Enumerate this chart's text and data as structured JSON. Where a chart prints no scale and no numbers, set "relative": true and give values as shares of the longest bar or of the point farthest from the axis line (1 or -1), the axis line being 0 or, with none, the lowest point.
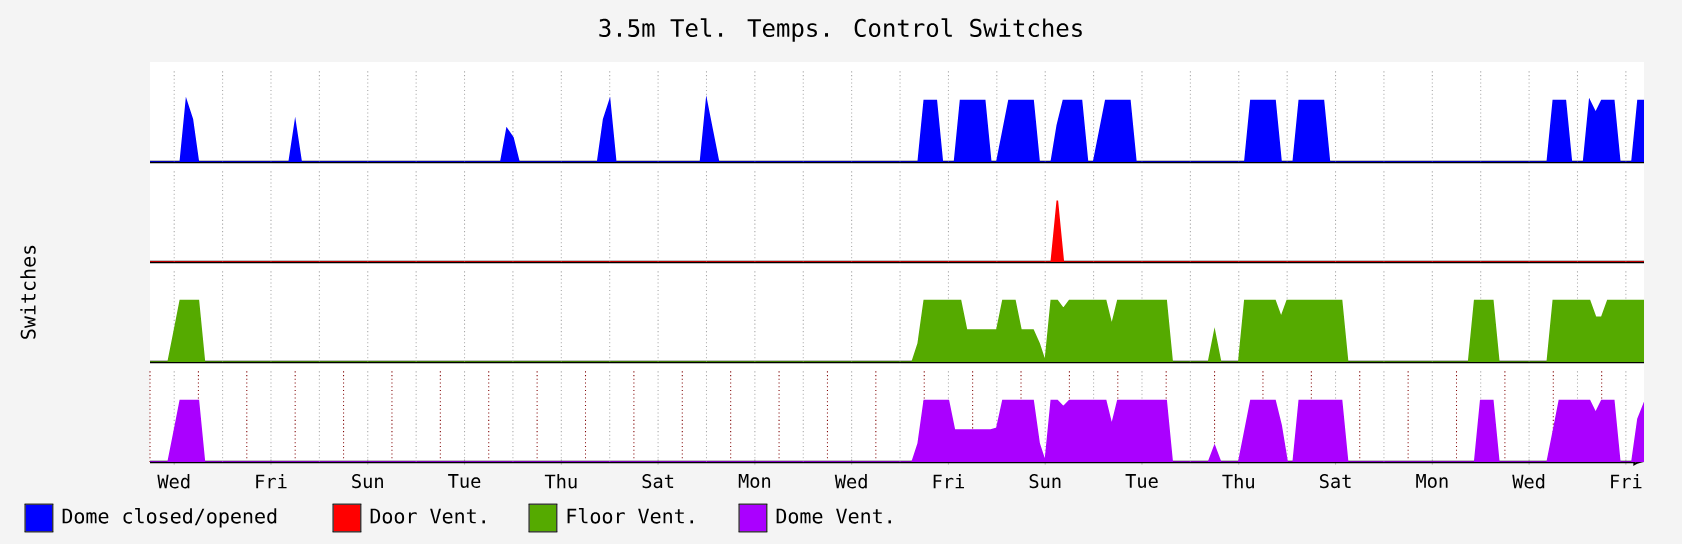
{
  "chart_data": [
    {
      "type": "area",
      "title": "3.5m Tel. Temps. Control Switches",
      "relative": true,
      "grid": "x",
      "tick_labels": false,
      "legend": "bottom",
      "categories": [
        null,
        null,
        null,
        null,
        null,
        null,
        null,
        null,
        null,
        null,
        null,
        null,
        null,
        null,
        null,
        null,
        null,
        null,
        null,
        null,
        null,
        null,
        null,
        null,
        null,
        null,
        null,
        null,
        null,
        null,
        null,
        null,
        null,
        null,
        null,
        null,
        null,
        null,
        null,
        null,
        null,
        null,
        null,
        null,
        null,
        null,
        null,
        null,
        null,
        null,
        null,
        null,
        null,
        null,
        null,
        null,
        null,
        null,
        null,
        null,
        null,
        null,
        null,
        null,
        null,
        null,
        null,
        null,
        null,
        null,
        null,
        null,
        null,
        null,
        null,
        null,
        null,
        null,
        null,
        null,
        null,
        null,
        null,
        null,
        null,
        null,
        null,
        null,
        null,
        null,
        null,
        null,
        null,
        null,
        null,
        null,
        null,
        null,
        null,
        null,
        null,
        null,
        null,
        null,
        null,
        null,
        null,
        null,
        null,
        null,
        null,
        null,
        null,
        null,
        null,
        null,
        null,
        null,
        null,
        null,
        null,
        null,
        null,
        null,
        null,
        null,
        null,
        null,
        null,
        null,
        null,
        null,
        null,
        null,
        null,
        null,
        null,
        null,
        null,
        null,
        null,
        null,
        null,
        null,
        null,
        null,
        null,
        null,
        null,
        null,
        null,
        null,
        null,
        null,
        null,
        null,
        null,
        null,
        null,
        null,
        null,
        null,
        null,
        null,
        null,
        null,
        null,
        null,
        null,
        null,
        null,
        null,
        null,
        null,
        null,
        null,
        null,
        null,
        null,
        null,
        null,
        null,
        null,
        null,
        null,
        null,
        null,
        null,
        null,
        null,
        null,
        null,
        null,
        null,
        null,
        null,
        null,
        null,
        null,
        null,
        null,
        null,
        null,
        null,
        null,
        null,
        null,
        null,
        null,
        null,
        null,
        null,
        null,
        null,
        null,
        null,
        null,
        null,
        null,
        null,
        null,
        null,
        null,
        null,
        null,
        null,
        null,
        null,
        null,
        null,
        null,
        null,
        null,
        null,
        null,
        null,
        null,
        null,
        null,
        null,
        null,
        null,
        null,
        null,
        null,
        null,
        null,
        null
      ],
      "series": [
        {
          "name": "Dome closed/opened",
          "color": "#0000ff",
          "values": [
            0,
            0,
            0,
            0,
            0,
            0,
            1,
            0.7,
            0,
            0,
            0,
            0,
            0,
            0,
            0,
            0,
            0,
            0,
            0,
            0,
            0,
            0,
            0,
            0,
            0.65,
            0,
            0,
            0,
            0,
            0,
            0,
            0,
            0,
            0,
            0,
            0,
            0,
            0,
            0,
            0,
            0,
            0,
            0,
            0,
            0,
            0,
            0,
            0,
            0,
            0,
            0,
            0,
            0,
            0,
            0,
            0,
            0,
            0,
            0,
            0.54,
            0.4,
            0,
            0,
            0,
            0,
            0,
            0,
            0,
            0,
            0,
            0,
            0,
            0,
            0,
            0,
            0.7,
            1,
            0,
            0,
            0,
            0,
            0,
            0,
            0,
            0,
            0,
            0,
            0,
            0,
            0,
            0,
            0,
            1,
            0.5,
            0,
            0,
            0,
            0,
            0,
            0,
            0,
            0,
            0,
            0,
            0,
            0,
            0,
            0,
            0,
            0,
            0,
            0,
            0,
            0,
            0,
            0,
            0,
            0,
            0,
            0,
            0,
            0,
            0,
            0,
            0,
            0,
            0,
            0,
            1,
            1,
            1,
            0,
            0,
            0,
            1,
            1,
            1,
            1,
            1,
            0,
            0,
            0.5,
            1,
            1,
            1,
            1,
            1,
            0,
            0,
            0,
            0.6,
            1,
            1,
            1,
            1,
            0,
            0,
            0.5,
            1,
            1,
            1,
            1,
            1,
            0,
            0,
            0,
            0,
            0,
            0,
            0,
            0,
            0,
            0,
            0,
            0,
            0,
            0,
            0,
            0,
            0,
            0,
            0,
            1,
            1,
            1,
            1,
            1,
            0,
            0,
            0,
            1,
            1,
            1,
            1,
            1,
            0,
            0,
            0,
            0,
            0,
            0,
            0,
            0,
            0,
            0,
            0,
            0,
            0,
            0,
            0,
            0,
            0,
            0,
            0,
            0,
            0,
            0,
            0,
            0,
            0,
            0,
            0,
            0,
            0,
            0,
            0,
            0,
            0,
            0,
            0,
            0,
            0,
            1,
            1,
            1,
            0,
            0,
            0,
            1,
            0.8,
            1,
            1,
            1,
            0,
            0,
            0,
            1,
            1
          ]
        }
      ]
    },
    {
      "type": "area",
      "relative": true,
      "grid": "x",
      "tick_labels": false,
      "legend": "bottom",
      "ylabel": "Switches",
      "categories": [
        null,
        null,
        null,
        null,
        null,
        null,
        null,
        null,
        null,
        null,
        null,
        null,
        null,
        null,
        null,
        null,
        null,
        null,
        null,
        null,
        null,
        null,
        null,
        null,
        null,
        null,
        null,
        null,
        null,
        null,
        null,
        null,
        null,
        null,
        null,
        null,
        null,
        null,
        null,
        null,
        null,
        null,
        null,
        null,
        null,
        null,
        null,
        null,
        null,
        null,
        null,
        null,
        null,
        null,
        null,
        null,
        null,
        null,
        null,
        null,
        null,
        null,
        null,
        null,
        null,
        null,
        null,
        null,
        null,
        null,
        null,
        null,
        null,
        null,
        null,
        null,
        null,
        null,
        null,
        null,
        null,
        null,
        null,
        null,
        null,
        null,
        null,
        null,
        null,
        null,
        null,
        null,
        null,
        null,
        null,
        null,
        null,
        null,
        null,
        null,
        null,
        null,
        null,
        null,
        null,
        null,
        null,
        null,
        null,
        null,
        null,
        null,
        null,
        null,
        null,
        null,
        null,
        null,
        null,
        null,
        null,
        null,
        null,
        null,
        null,
        null,
        null,
        null,
        null,
        null,
        null,
        null,
        null,
        null,
        null,
        null,
        null,
        null,
        null,
        null,
        null,
        null,
        null,
        null,
        null,
        null,
        null,
        null,
        null,
        null,
        null,
        null,
        null,
        null,
        null,
        null,
        null,
        null,
        null,
        null,
        null,
        null,
        null,
        null,
        null,
        null,
        null,
        null,
        null,
        null,
        null,
        null,
        null,
        null,
        null,
        null,
        null,
        null,
        null,
        null,
        null,
        null,
        null,
        null,
        null,
        null,
        null,
        null,
        null,
        null,
        null,
        null,
        null,
        null,
        null,
        null,
        null,
        null,
        null,
        null,
        null,
        null,
        null,
        null,
        null,
        null,
        null,
        null,
        null,
        null,
        null,
        null,
        null,
        null,
        null,
        null,
        null,
        null,
        null,
        null,
        null,
        null,
        null,
        null,
        null,
        null,
        null,
        null,
        null,
        null,
        null,
        null,
        null,
        null,
        null,
        null,
        null,
        null,
        null,
        null,
        null,
        null,
        null,
        null,
        null,
        null,
        null,
        null
      ],
      "series": [
        {
          "name": "Door Vent.",
          "color": "#ff0000",
          "values": [
            0,
            0,
            0,
            0,
            0,
            0,
            0,
            0,
            0,
            0,
            0,
            0,
            0,
            0,
            0,
            0,
            0,
            0,
            0,
            0,
            0,
            0,
            0,
            0,
            0,
            0,
            0,
            0,
            0,
            0,
            0,
            0,
            0,
            0,
            0,
            0,
            0,
            0,
            0,
            0,
            0,
            0,
            0,
            0,
            0,
            0,
            0,
            0,
            0,
            0,
            0,
            0,
            0,
            0,
            0,
            0,
            0,
            0,
            0,
            0,
            0,
            0,
            0,
            0,
            0,
            0,
            0,
            0,
            0,
            0,
            0,
            0,
            0,
            0,
            0,
            0,
            0,
            0,
            0,
            0,
            0,
            0,
            0,
            0,
            0,
            0,
            0,
            0,
            0,
            0,
            0,
            0,
            0,
            0,
            0,
            0,
            0,
            0,
            0,
            0,
            0,
            0,
            0,
            0,
            0,
            0,
            0,
            0,
            0,
            0,
            0,
            0,
            0,
            0,
            0,
            0,
            0,
            0,
            0,
            0,
            0,
            0,
            0,
            0,
            0,
            0,
            0,
            0,
            0,
            0,
            0,
            0,
            0,
            0,
            0,
            0,
            0,
            0,
            0,
            0,
            0,
            0,
            0,
            0,
            0,
            0,
            0,
            0,
            0,
            0,
            1,
            0,
            0,
            0,
            0,
            0,
            0,
            0,
            0,
            0,
            0,
            0,
            0,
            0,
            0,
            0,
            0,
            0,
            0,
            0,
            0,
            0,
            0,
            0,
            0,
            0,
            0,
            0,
            0,
            0,
            0,
            0,
            0,
            0,
            0,
            0,
            0,
            0,
            0,
            0,
            0,
            0,
            0,
            0,
            0,
            0,
            0,
            0,
            0,
            0,
            0,
            0,
            0,
            0,
            0,
            0,
            0,
            0,
            0,
            0,
            0,
            0,
            0,
            0,
            0,
            0,
            0,
            0,
            0,
            0,
            0,
            0,
            0,
            0,
            0,
            0,
            0,
            0,
            0,
            0,
            0,
            0,
            0,
            0,
            0,
            0,
            0,
            0,
            0,
            0,
            0,
            0,
            0,
            0,
            0,
            0,
            0,
            0
          ]
        }
      ]
    },
    {
      "type": "area",
      "relative": true,
      "grid": "x",
      "tick_labels": false,
      "legend": "bottom",
      "categories": [
        null,
        null,
        null,
        null,
        null,
        null,
        null,
        null,
        null,
        null,
        null,
        null,
        null,
        null,
        null,
        null,
        null,
        null,
        null,
        null,
        null,
        null,
        null,
        null,
        null,
        null,
        null,
        null,
        null,
        null,
        null,
        null,
        null,
        null,
        null,
        null,
        null,
        null,
        null,
        null,
        null,
        null,
        null,
        null,
        null,
        null,
        null,
        null,
        null,
        null,
        null,
        null,
        null,
        null,
        null,
        null,
        null,
        null,
        null,
        null,
        null,
        null,
        null,
        null,
        null,
        null,
        null,
        null,
        null,
        null,
        null,
        null,
        null,
        null,
        null,
        null,
        null,
        null,
        null,
        null,
        null,
        null,
        null,
        null,
        null,
        null,
        null,
        null,
        null,
        null,
        null,
        null,
        null,
        null,
        null,
        null,
        null,
        null,
        null,
        null,
        null,
        null,
        null,
        null,
        null,
        null,
        null,
        null,
        null,
        null,
        null,
        null,
        null,
        null,
        null,
        null,
        null,
        null,
        null,
        null,
        null,
        null,
        null,
        null,
        null,
        null,
        null,
        null,
        null,
        null,
        null,
        null,
        null,
        null,
        null,
        null,
        null,
        null,
        null,
        null,
        null,
        null,
        null,
        null,
        null,
        null,
        null,
        null,
        null,
        null,
        null,
        null,
        null,
        null,
        null,
        null,
        null,
        null,
        null,
        null,
        null,
        null,
        null,
        null,
        null,
        null,
        null,
        null,
        null,
        null,
        null,
        null,
        null,
        null,
        null,
        null,
        null,
        null,
        null,
        null,
        null,
        null,
        null,
        null,
        null,
        null,
        null,
        null,
        null,
        null,
        null,
        null,
        null,
        null,
        null,
        null,
        null,
        null,
        null,
        null,
        null,
        null,
        null,
        null,
        null,
        null,
        null,
        null,
        null,
        null,
        null,
        null,
        null,
        null,
        null,
        null,
        null,
        null,
        null,
        null,
        null,
        null,
        null,
        null,
        null,
        null,
        null,
        null,
        null,
        null,
        null,
        null,
        null,
        null,
        null,
        null,
        null,
        null,
        null,
        null,
        null,
        null,
        null,
        null,
        null,
        null,
        null,
        null
      ],
      "series": [
        {
          "name": "Floor Vent.",
          "color": "#55aa00",
          "values": [
            0,
            0,
            0,
            0,
            0.5,
            1,
            1,
            1,
            1,
            0,
            0,
            0,
            0,
            0,
            0,
            0,
            0,
            0,
            0,
            0,
            0,
            0,
            0,
            0,
            0,
            0,
            0,
            0,
            0,
            0,
            0,
            0,
            0,
            0,
            0,
            0,
            0,
            0,
            0,
            0,
            0,
            0,
            0,
            0,
            0,
            0,
            0,
            0,
            0,
            0,
            0,
            0,
            0,
            0,
            0,
            0,
            0,
            0,
            0,
            0,
            0,
            0,
            0,
            0,
            0,
            0,
            0,
            0,
            0,
            0,
            0,
            0,
            0,
            0,
            0,
            0,
            0,
            0,
            0,
            0,
            0,
            0,
            0,
            0,
            0,
            0,
            0,
            0,
            0,
            0,
            0,
            0,
            0,
            0,
            0,
            0,
            0,
            0,
            0,
            0,
            0,
            0,
            0,
            0,
            0,
            0,
            0,
            0,
            0,
            0,
            0,
            0,
            0,
            0,
            0,
            0,
            0,
            0,
            0,
            0,
            0,
            0,
            0,
            0,
            0,
            0,
            0,
            0.3,
            1,
            1,
            1,
            1,
            1,
            1,
            1,
            0.52,
            0.52,
            0.52,
            0.52,
            0.52,
            0.52,
            1,
            1,
            1,
            0.52,
            0.52,
            0.52,
            0.3,
            0,
            1,
            1,
            0.87,
            1,
            1,
            1,
            1,
            1,
            1,
            1,
            0.6,
            1,
            1,
            1,
            1,
            1,
            1,
            1,
            1,
            1,
            0,
            0,
            0,
            0,
            0,
            0,
            0,
            0.5,
            0,
            0,
            0,
            0,
            1,
            1,
            1,
            1,
            1,
            1,
            0.73,
            1,
            1,
            1,
            1,
            1,
            1,
            1,
            1,
            1,
            1,
            0,
            0,
            0,
            0,
            0,
            0,
            0,
            0,
            0,
            0,
            0,
            0,
            0,
            0,
            0,
            0,
            0,
            0,
            0,
            0,
            0,
            1,
            1,
            1,
            1,
            0,
            0,
            0,
            0,
            0,
            0,
            0,
            0,
            0,
            1,
            1,
            1,
            1,
            1,
            1,
            1,
            0.73,
            0.73,
            1,
            1,
            1,
            1,
            1,
            1,
            1
          ]
        }
      ]
    },
    {
      "type": "area",
      "relative": true,
      "grid": "x",
      "tick_labels": "x",
      "legend": "bottom",
      "categories": [
        null,
        null,
        null,
        null,
        "Wed",
        null,
        null,
        null,
        null,
        null,
        null,
        null,
        null,
        null,
        null,
        null,
        null,
        null,
        null,
        null,
        "Fri",
        null,
        null,
        null,
        null,
        null,
        null,
        null,
        null,
        null,
        null,
        null,
        null,
        null,
        null,
        null,
        "Sun",
        null,
        null,
        null,
        null,
        null,
        null,
        null,
        null,
        null,
        null,
        null,
        null,
        null,
        null,
        null,
        "Tue",
        null,
        null,
        null,
        null,
        null,
        null,
        null,
        null,
        null,
        null,
        null,
        null,
        null,
        null,
        null,
        "Thu",
        null,
        null,
        null,
        null,
        null,
        null,
        null,
        null,
        null,
        null,
        null,
        null,
        null,
        null,
        null,
        "Sat",
        null,
        null,
        null,
        null,
        null,
        null,
        null,
        null,
        null,
        null,
        null,
        null,
        null,
        null,
        null,
        "Mon",
        null,
        null,
        null,
        null,
        null,
        null,
        null,
        null,
        null,
        null,
        null,
        null,
        null,
        null,
        null,
        "Wed",
        null,
        null,
        null,
        null,
        null,
        null,
        null,
        null,
        null,
        null,
        null,
        null,
        null,
        null,
        null,
        "Fri",
        null,
        null,
        null,
        null,
        null,
        null,
        null,
        null,
        null,
        null,
        null,
        null,
        null,
        null,
        null,
        "Sun",
        null,
        null,
        null,
        null,
        null,
        null,
        null,
        null,
        null,
        null,
        null,
        null,
        null,
        null,
        null,
        "Tue",
        null,
        null,
        null,
        null,
        null,
        null,
        null,
        null,
        null,
        null,
        null,
        null,
        null,
        null,
        null,
        "Thu",
        null,
        null,
        null,
        null,
        null,
        null,
        null,
        null,
        null,
        null,
        null,
        null,
        null,
        null,
        null,
        "Sat",
        null,
        null,
        null,
        null,
        null,
        null,
        null,
        null,
        null,
        null,
        null,
        null,
        null,
        null,
        null,
        "Mon",
        null,
        null,
        null,
        null,
        null,
        null,
        null,
        null,
        null,
        null,
        null,
        null,
        null,
        null,
        null,
        "Wed",
        null,
        null,
        null,
        null,
        null,
        null,
        null,
        null,
        null,
        null,
        null,
        null,
        null,
        null,
        null,
        "Fri",
        null,
        null,
        null
      ],
      "series": [
        {
          "name": "Dome Vent.",
          "color": "#aa00ff",
          "values": [
            0,
            0,
            0,
            0,
            0.5,
            1,
            1,
            1,
            1,
            0,
            0,
            0,
            0,
            0,
            0,
            0,
            0,
            0,
            0,
            0,
            0,
            0,
            0,
            0,
            0,
            0,
            0,
            0,
            0,
            0,
            0,
            0,
            0,
            0,
            0,
            0,
            0,
            0,
            0,
            0,
            0,
            0,
            0,
            0,
            0,
            0,
            0,
            0,
            0,
            0,
            0,
            0,
            0,
            0,
            0,
            0,
            0,
            0,
            0,
            0,
            0,
            0,
            0,
            0,
            0,
            0,
            0,
            0,
            0,
            0,
            0,
            0,
            0,
            0,
            0,
            0,
            0,
            0,
            0,
            0,
            0,
            0,
            0,
            0,
            0,
            0,
            0,
            0,
            0,
            0,
            0,
            0,
            0,
            0,
            0,
            0,
            0,
            0,
            0,
            0,
            0,
            0,
            0,
            0,
            0,
            0,
            0,
            0,
            0,
            0,
            0,
            0,
            0,
            0,
            0,
            0,
            0,
            0,
            0,
            0,
            0,
            0,
            0,
            0,
            0,
            0,
            0,
            0.3,
            1,
            1,
            1,
            1,
            1,
            0.52,
            0.52,
            0.52,
            0.52,
            0.52,
            0.52,
            0.52,
            0.55,
            1,
            1,
            1,
            1,
            1,
            1,
            0.3,
            0,
            1,
            1,
            0.9,
            1,
            1,
            1,
            1,
            1,
            1,
            1,
            0.6,
            1,
            1,
            1,
            1,
            1,
            1,
            1,
            1,
            1,
            0,
            0,
            0,
            0,
            0,
            0,
            0,
            0.26,
            0,
            0,
            0,
            0,
            0.5,
            1,
            1,
            1,
            1,
            1,
            0.6,
            0,
            0,
            1,
            1,
            1,
            1,
            1,
            1,
            1,
            1,
            0,
            0,
            0,
            0,
            0,
            0,
            0,
            0,
            0,
            0,
            0,
            0,
            0,
            0,
            0,
            0,
            0,
            0,
            0,
            0,
            0,
            0,
            1,
            1,
            1,
            0,
            0,
            0,
            0,
            0,
            0,
            0,
            0,
            0,
            0.5,
            1,
            1,
            1,
            1,
            1,
            1,
            0.8,
            1,
            1,
            1,
            0,
            0,
            0,
            0.7,
            0.95
          ]
        }
      ]
    }
  ]
}
